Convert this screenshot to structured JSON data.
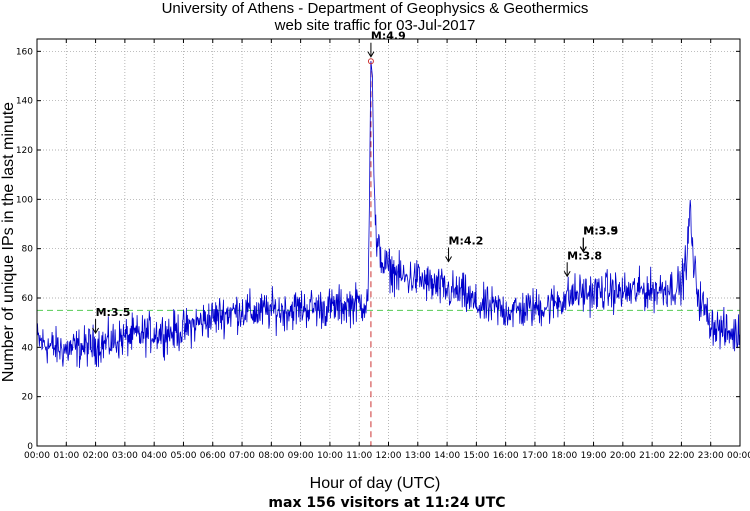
{
  "chart_data": {
    "type": "line",
    "title": "University of Athens - Department of Geophysics & Geothermics",
    "subtitle": "web site traffic for 03-Jul-2017",
    "xlabel": "Hour of day (UTC)",
    "ylabel": "Number of unique IPs in the last minute",
    "footer": "max 156 visitors at 11:24 UTC",
    "xlim": [
      0,
      24
    ],
    "ylim": [
      0,
      165
    ],
    "x_ticks": [
      0,
      1,
      2,
      3,
      4,
      5,
      6,
      7,
      8,
      9,
      10,
      11,
      12,
      13,
      14,
      15,
      16,
      17,
      18,
      19,
      20,
      21,
      22,
      23,
      24
    ],
    "x_tick_labels": [
      "00:00",
      "01:00",
      "02:00",
      "03:00",
      "04:00",
      "05:00",
      "06:00",
      "07:00",
      "08:00",
      "09:00",
      "10:00",
      "11:00",
      "12:00",
      "13:00",
      "14:00",
      "15:00",
      "16:00",
      "17:00",
      "18:00",
      "19:00",
      "20:00",
      "21:00",
      "22:00",
      "23:00",
      "00:00"
    ],
    "y_ticks": [
      0,
      20,
      40,
      60,
      80,
      100,
      120,
      140,
      160
    ],
    "y_tick_labels": [
      "0",
      "20",
      "40",
      "60",
      "80",
      "100",
      "120",
      "140",
      "160"
    ],
    "grid": true,
    "reference_line": {
      "value": 55,
      "color": "#55cc55",
      "style": "dashed"
    },
    "max_marker": {
      "x": 11.4,
      "y": 156,
      "color": "#cc3333"
    },
    "series": [
      {
        "color": "#0000cc",
        "x": [
          0,
          0.5,
          1,
          1.5,
          2,
          2.5,
          3,
          3.5,
          4,
          4.5,
          5,
          5.5,
          6,
          6.5,
          7,
          7.5,
          8,
          8.5,
          9,
          9.5,
          10,
          10.5,
          11,
          11.2,
          11.3,
          11.35,
          11.4,
          11.45,
          11.5,
          11.6,
          11.7,
          11.8,
          12,
          12.5,
          13,
          13.5,
          14,
          14.5,
          15,
          15.5,
          16,
          16.5,
          17,
          17.5,
          18,
          18.5,
          19,
          19.5,
          20,
          20.5,
          21,
          21.5,
          22,
          22.2,
          22.3,
          22.4,
          22.6,
          23,
          23.5,
          24
        ],
        "values": [
          43,
          40,
          39,
          40,
          41,
          42,
          44,
          45,
          46,
          46,
          47,
          50,
          52,
          54,
          55,
          54,
          55,
          55,
          56,
          56,
          56,
          57,
          58,
          58,
          59,
          100,
          156,
          150,
          110,
          78,
          80,
          74,
          72,
          68,
          68,
          65,
          63,
          62,
          57,
          56,
          55,
          55,
          56,
          57,
          60,
          62,
          62,
          63,
          62,
          63,
          63,
          64,
          65,
          78,
          97,
          74,
          60,
          50,
          46,
          45
        ],
        "noise": 4
      }
    ],
    "annotations": [
      {
        "label": "M:3.5",
        "x": 2.0,
        "y": 45
      },
      {
        "label": "M:4.9",
        "x": 11.4,
        "y": 157
      },
      {
        "label": "M:4.2",
        "x": 14.05,
        "y": 74
      },
      {
        "label": "M:3.8",
        "x": 18.1,
        "y": 68
      },
      {
        "label": "M:3.9",
        "x": 18.65,
        "y": 78
      },
      {
        "label": "M:3.5",
        "x": 18.65,
        "y": 78
      }
    ]
  }
}
